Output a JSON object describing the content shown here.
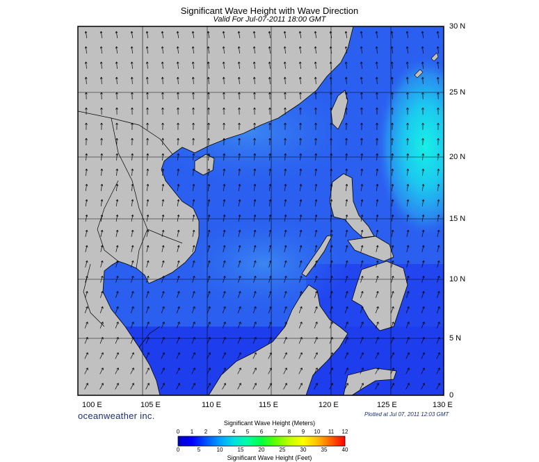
{
  "title": "Significant Wave Height with Wave Direction",
  "subtitle": "Valid For Jul-07-2011 18:00 GMT",
  "latitude_labels": [
    "30 N",
    "25 N",
    "20 N",
    "15 N",
    "10 N",
    "5 N",
    "0"
  ],
  "longitude_labels": [
    "100 E",
    "105 E",
    "110 E",
    "115 E",
    "120 E",
    "125 E",
    "130 E"
  ],
  "brand": "oceanweather inc.",
  "plotted": "Plotted at Jul 07, 2011 12:03 GMT",
  "colorbar": {
    "meters_label": "Significant Wave Height (Meters)",
    "feet_label": "Significant Wave Height (Feet)",
    "meters_ticks": [
      "0",
      "1",
      "2",
      "3",
      "4",
      "5",
      "6",
      "7",
      "8",
      "9",
      "10",
      "11",
      "12"
    ],
    "feet_ticks": [
      "0",
      "5",
      "10",
      "15",
      "20",
      "25",
      "30",
      "35",
      "40"
    ],
    "colors": [
      "#0000c8",
      "#0000ff",
      "#0050ff",
      "#00a0ff",
      "#00e0e0",
      "#00ffa0",
      "#00ff40",
      "#60ff00",
      "#c0ff00",
      "#ffff00",
      "#ffc000",
      "#ff6000",
      "#ff0000"
    ]
  },
  "colors": {
    "land": "#c0c0c0",
    "sea_low": "#1e2ff0",
    "sea_mid": "#2c6cf0",
    "sea_high": "#19e0ec",
    "grid": "#000000"
  }
}
